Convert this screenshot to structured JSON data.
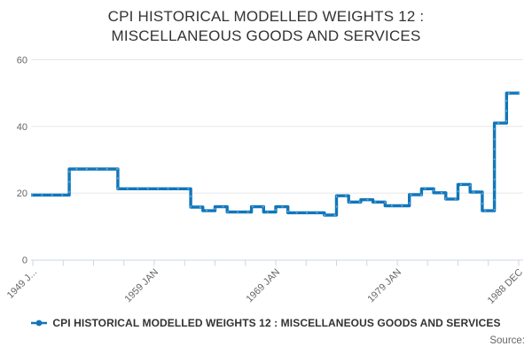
{
  "title": "CPI HISTORICAL MODELLED WEIGHTS 12 : MISCELLANEOUS GOODS AND SERVICES",
  "legend": {
    "label": "CPI HISTORICAL MODELLED WEIGHTS 12 : MISCELLANEOUS GOODS AND SERVICES",
    "marker": "line-with-dot-icon"
  },
  "source": {
    "label": "Source:"
  },
  "colors": {
    "line": "#1076bb",
    "marker_dash": "#6fb0da",
    "grid": "#e6e6e6",
    "axis": "#ccd6eb",
    "tick_text": "#666666",
    "title_text": "#333333"
  },
  "chart_data": {
    "type": "line",
    "step": true,
    "title": "CPI HISTORICAL MODELLED WEIGHTS 12 : MISCELLANEOUS GOODS AND SERVICES",
    "xlabel": "",
    "ylabel": "",
    "ylim": [
      0,
      60
    ],
    "yticks": [
      0,
      20,
      40,
      60
    ],
    "grid": "horizontal",
    "legend_position": "bottom",
    "x_range": [
      "1949 JAN",
      "1988 DEC"
    ],
    "xtick_labels": [
      "1949 J...",
      "1959 JAN",
      "1969 JAN",
      "1979 JAN",
      "1988 DEC"
    ],
    "minor_tick_interval_years": 2.5,
    "years": [
      1949,
      1950,
      1951,
      1952,
      1953,
      1954,
      1955,
      1956,
      1957,
      1958,
      1959,
      1960,
      1961,
      1962,
      1963,
      1964,
      1965,
      1966,
      1967,
      1968,
      1969,
      1970,
      1971,
      1972,
      1973,
      1974,
      1975,
      1976,
      1977,
      1978,
      1979,
      1980,
      1981,
      1982,
      1983,
      1984,
      1985,
      1986,
      1987,
      1988
    ],
    "values": [
      19.4,
      19.4,
      19.4,
      27.2,
      27.2,
      27.2,
      27.2,
      21.3,
      21.3,
      21.3,
      21.3,
      21.3,
      21.3,
      15.8,
      14.7,
      15.9,
      14.3,
      14.3,
      15.9,
      14.3,
      15.9,
      14.1,
      14.1,
      14.1,
      13.4,
      19.2,
      17.3,
      18.0,
      17.3,
      16.2,
      16.2,
      19.5,
      21.3,
      20.1,
      18.2,
      22.6,
      20.3,
      14.7,
      41.0,
      50.0
    ],
    "series_name": "CPI HISTORICAL MODELLED WEIGHTS 12 : MISCELLANEOUS GOODS AND SERVICES"
  }
}
